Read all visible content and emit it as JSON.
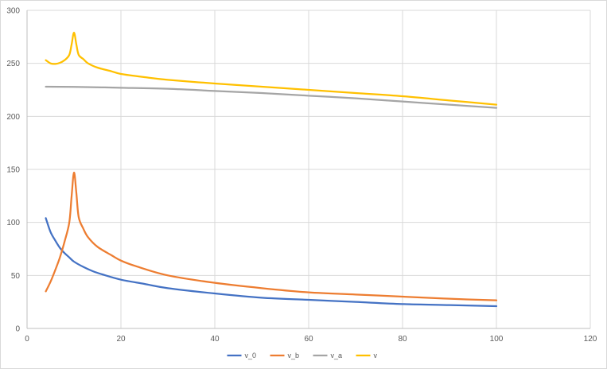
{
  "chart_data": {
    "type": "line",
    "title": "",
    "xlabel": "",
    "ylabel": "",
    "xlim": [
      0,
      120
    ],
    "ylim": [
      0,
      300
    ],
    "x_ticks": [
      0,
      20,
      40,
      60,
      80,
      100,
      120
    ],
    "y_ticks": [
      0,
      50,
      100,
      150,
      200,
      250,
      300
    ],
    "grid": true,
    "legend_position": "bottom",
    "series": [
      {
        "name": "v_0",
        "color": "#4472c4",
        "x": [
          4,
          5,
          6,
          7,
          8,
          9,
          10,
          12,
          14,
          16,
          20,
          25,
          30,
          40,
          50,
          60,
          70,
          80,
          90,
          100
        ],
        "y": [
          104,
          91,
          83,
          76,
          71,
          67,
          63,
          58,
          54,
          51,
          46,
          42,
          38,
          33,
          29,
          27,
          25,
          23,
          22,
          21
        ]
      },
      {
        "name": "v_b",
        "color": "#ed7d31",
        "x": [
          4,
          5,
          6,
          7,
          8,
          9,
          9.5,
          10,
          10.5,
          11,
          12,
          13,
          15,
          18,
          20,
          23,
          30,
          40,
          50,
          60,
          70,
          80,
          90,
          100
        ],
        "y": [
          35,
          44,
          55,
          67,
          82,
          100,
          125,
          147,
          128,
          105,
          94,
          86,
          77,
          69,
          64,
          59,
          50,
          43,
          38,
          34,
          32,
          30,
          28,
          26.5
        ]
      },
      {
        "name": "v_a",
        "color": "#a5a5a5",
        "x": [
          4,
          10,
          20,
          30,
          40,
          50,
          60,
          70,
          80,
          90,
          100
        ],
        "y": [
          228,
          227.8,
          227,
          226,
          224,
          222,
          219.5,
          217,
          214,
          211,
          208
        ]
      },
      {
        "name": "v",
        "color": "#ffc000",
        "x": [
          4,
          5,
          6,
          7,
          8,
          9,
          9.5,
          10,
          10.5,
          11,
          12,
          13,
          15,
          18,
          20,
          25,
          30,
          40,
          50,
          60,
          70,
          80,
          90,
          100
        ],
        "y": [
          253,
          250,
          249.5,
          250.5,
          253,
          258,
          268,
          279,
          268,
          258,
          254,
          250,
          246,
          242.5,
          240,
          237,
          234.5,
          231,
          228,
          225,
          222,
          219,
          215,
          211
        ]
      }
    ]
  }
}
